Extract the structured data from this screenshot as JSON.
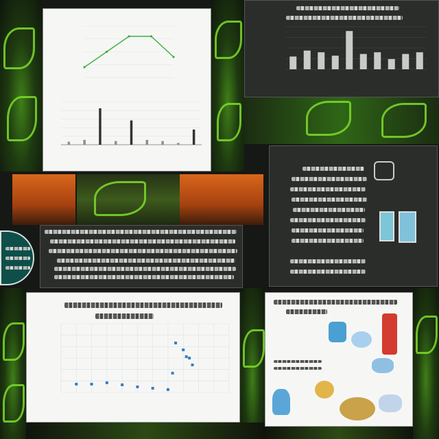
{
  "chart_data": [
    {
      "type": "line",
      "x": [
        1,
        2,
        3,
        4,
        5
      ],
      "values": [
        2,
        5,
        8,
        8,
        4
      ],
      "ylim": [
        0,
        10
      ],
      "grid": true
    },
    {
      "type": "bar",
      "categories": [
        "",
        "",
        "",
        "",
        "",
        "",
        "",
        "",
        ""
      ],
      "values": [
        5,
        8,
        60,
        6,
        40,
        8,
        6,
        3,
        25
      ],
      "ylim": [
        0,
        70
      ],
      "grid": true
    },
    {
      "type": "bar",
      "categories": [
        "",
        "",
        "",
        "",
        "",
        "",
        "",
        "",
        "",
        ""
      ],
      "values": [
        15,
        22,
        20,
        16,
        45,
        18,
        20,
        12,
        18,
        20
      ],
      "ylim": [
        0,
        50
      ],
      "grid": true
    },
    {
      "type": "scatter",
      "title": "",
      "x": [
        1,
        2,
        3,
        4,
        5,
        6,
        7,
        7.3,
        7.5,
        8,
        8.2,
        8.4,
        8.6
      ],
      "y": [
        12,
        12,
        14,
        11,
        8,
        6,
        4,
        28,
        72,
        62,
        52,
        50,
        40
      ],
      "xlim": [
        0,
        11
      ],
      "ylim": [
        0,
        100
      ],
      "grid": true
    }
  ],
  "colors": {
    "background": "#161816",
    "panel_dark": "#2b2d2b",
    "panel_light": "#f6f7f5",
    "plant_green": "#7edc2a",
    "bar_gray": "#c9cbc7",
    "bar_dark": "#333333",
    "point_blue": "#3a7fc0"
  }
}
